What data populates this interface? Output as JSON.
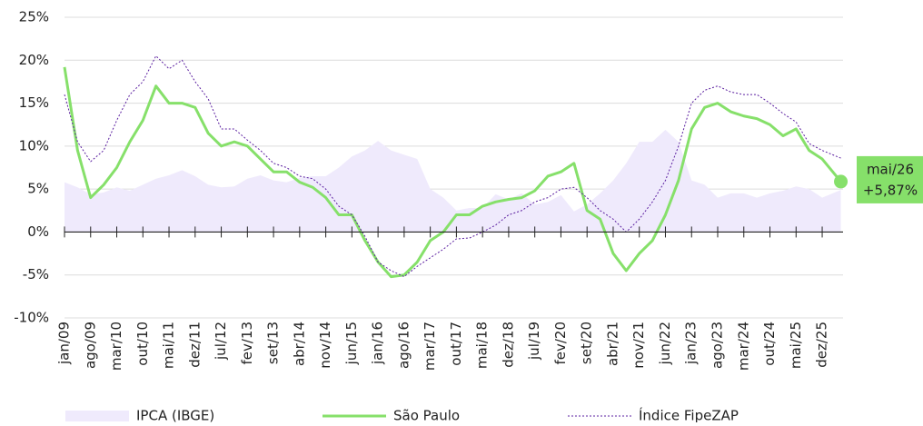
{
  "chart_data": {
    "type": "line",
    "categories": [
      "jan/09",
      null,
      "ago/09",
      null,
      "mar/10",
      null,
      "out/10",
      null,
      "mai/11",
      null,
      "dez/11",
      null,
      "jul/12",
      null,
      "fev/13",
      null,
      "set/13",
      null,
      "abr/14",
      null,
      "nov/14",
      null,
      "jun/15",
      null,
      "jan/16",
      null,
      "ago/16",
      null,
      "mar/17",
      null,
      "out/17",
      null,
      "mai/18",
      null,
      "dez/18",
      null,
      "jul/19",
      null,
      "fev/20",
      null,
      "set/20",
      null,
      "abr/21",
      null,
      "nov/21",
      null,
      "jun/22",
      null,
      "jan/23",
      null,
      "ago/23",
      null,
      "mar/24",
      null,
      "out/24",
      null,
      "mai/25",
      null,
      "dez/25",
      null
    ],
    "series": [
      {
        "name": "IPCA (IBGE)",
        "style": "area",
        "color": "#efeafc",
        "values": [
          5.8,
          5.2,
          4.4,
          4.6,
          5.2,
          4.8,
          5.5,
          6.2,
          6.6,
          7.2,
          6.5,
          5.5,
          5.2,
          5.3,
          6.2,
          6.6,
          6.0,
          5.8,
          6.3,
          6.5,
          6.5,
          7.5,
          8.8,
          9.5,
          10.6,
          9.5,
          9.0,
          8.5,
          5.0,
          4.0,
          2.5,
          2.8,
          2.8,
          4.4,
          3.8,
          4.5,
          3.2,
          3.5,
          4.3,
          2.4,
          3.2,
          4.5,
          6.0,
          8.0,
          10.5,
          10.5,
          11.9,
          10.5,
          6.0,
          5.5,
          4.0,
          4.5,
          4.5,
          4.0,
          4.5,
          4.8,
          5.3,
          5.0,
          4.0,
          4.9
        ]
      },
      {
        "name": "São Paulo",
        "style": "solid",
        "color": "#86e06a",
        "values": [
          19.2,
          9.5,
          4.0,
          5.5,
          7.5,
          10.5,
          13.0,
          17.0,
          15.0,
          15.0,
          14.5,
          11.5,
          10.0,
          10.5,
          10.0,
          8.5,
          7.0,
          7.0,
          5.8,
          5.2,
          4.0,
          2.0,
          2.0,
          -1.0,
          -3.5,
          -5.2,
          -5.0,
          -3.5,
          -1.0,
          0.0,
          2.0,
          2.0,
          3.0,
          3.5,
          3.8,
          4.0,
          4.8,
          6.5,
          7.0,
          8.0,
          2.5,
          1.5,
          -2.5,
          -4.5,
          -2.5,
          -1.0,
          2.0,
          6.0,
          12.0,
          14.5,
          15.0,
          14.0,
          13.5,
          13.2,
          12.5,
          11.2,
          12.0,
          9.5,
          8.5,
          5.87
        ]
      },
      {
        "name": "Índice FipeZAP",
        "style": "dotted",
        "color": "#5b1fa0",
        "values": [
          16.0,
          10.5,
          8.2,
          9.5,
          13.0,
          16.0,
          17.5,
          20.5,
          19.0,
          20.0,
          17.5,
          15.5,
          12.0,
          12.0,
          10.7,
          9.5,
          8.0,
          7.5,
          6.5,
          6.2,
          5.0,
          3.0,
          2.0,
          -0.5,
          -3.5,
          -4.5,
          -5.2,
          -4.0,
          -3.0,
          -2.0,
          -0.8,
          -0.7,
          0.0,
          0.8,
          2.0,
          2.5,
          3.5,
          4.0,
          5.0,
          5.2,
          4.0,
          2.5,
          1.5,
          0.0,
          1.5,
          3.5,
          6.0,
          10.0,
          15.0,
          16.5,
          17.0,
          16.3,
          16.0,
          16.0,
          15.0,
          13.8,
          12.8,
          10.3,
          9.5,
          8.6
        ]
      }
    ],
    "annotation": {
      "label": "mai/26",
      "value_label": "+5,87%"
    },
    "ylim": [
      -10,
      25
    ],
    "yticks": [
      {
        "value": -10,
        "label": "-10%"
      },
      {
        "value": -5,
        "label": "-5%"
      },
      {
        "value": 0,
        "label": "0%"
      },
      {
        "value": 5,
        "label": "5%"
      },
      {
        "value": 10,
        "label": "10%"
      },
      {
        "value": 15,
        "label": "15%"
      },
      {
        "value": 20,
        "label": "20%"
      },
      {
        "value": 25,
        "label": "25%"
      }
    ],
    "grid": true
  }
}
